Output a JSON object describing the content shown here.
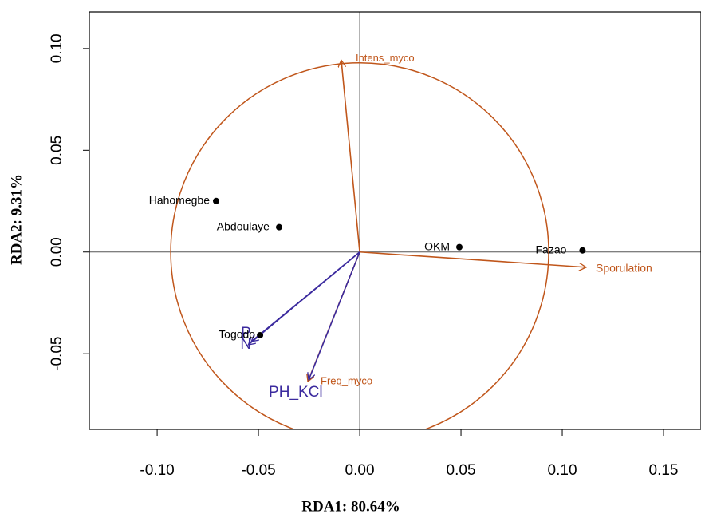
{
  "chart_data": {
    "type": "scatter",
    "xlabel": "RDA1: 80.64%",
    "ylabel": "RDA2: 9.31%",
    "xlim": [
      -0.1335,
      0.1685
    ],
    "ylim": [
      -0.0872,
      0.118
    ],
    "xticks": [
      {
        "value": -0.1,
        "label": "-0.10"
      },
      -0.05,
      {
        "value": 0,
        "label": "0.00"
      },
      0.05,
      {
        "value": 0.1,
        "label": "0.10"
      },
      0.15
    ],
    "yticks": [
      -0.05,
      {
        "value": 0,
        "label": "0.00"
      },
      0.05,
      {
        "value": 0.1,
        "label": "0.10"
      }
    ],
    "hlines": [
      0
    ],
    "vlines": [
      0
    ],
    "points": {
      "color": "#000000",
      "labels": [
        "Hahomegbe",
        "Abdoulaye",
        "OKM",
        "Fazao",
        "Togodo"
      ],
      "x": [
        -0.0709,
        -0.0398,
        0.0492,
        0.11,
        -0.0492
      ],
      "y": [
        0.0251,
        0.0122,
        0.0024,
        0.0008,
        -0.0409
      ]
    },
    "circle": {
      "r": 0.0933,
      "color": "#c0561b"
    },
    "arrows": [
      {
        "label": "Intens_myco",
        "x": -0.0091,
        "y": 0.0943,
        "color": "#c0561b"
      },
      {
        "label": "Sporulation",
        "x": 0.1118,
        "y": -0.0075,
        "color": "#c0561b"
      },
      {
        "label": "Freq_myco",
        "x": -0.0256,
        "y": -0.0637,
        "color": "#c0561b"
      },
      {
        "label": "P",
        "x": -0.0535,
        "y": -0.044,
        "color": "#3b2a9e"
      },
      {
        "label": "N",
        "x": -0.055,
        "y": -0.0456,
        "color": "#3b2a9e"
      },
      {
        "label": "PH_KCl",
        "x": -0.0252,
        "y": -0.0629,
        "color": "#3b2a9e"
      }
    ]
  }
}
